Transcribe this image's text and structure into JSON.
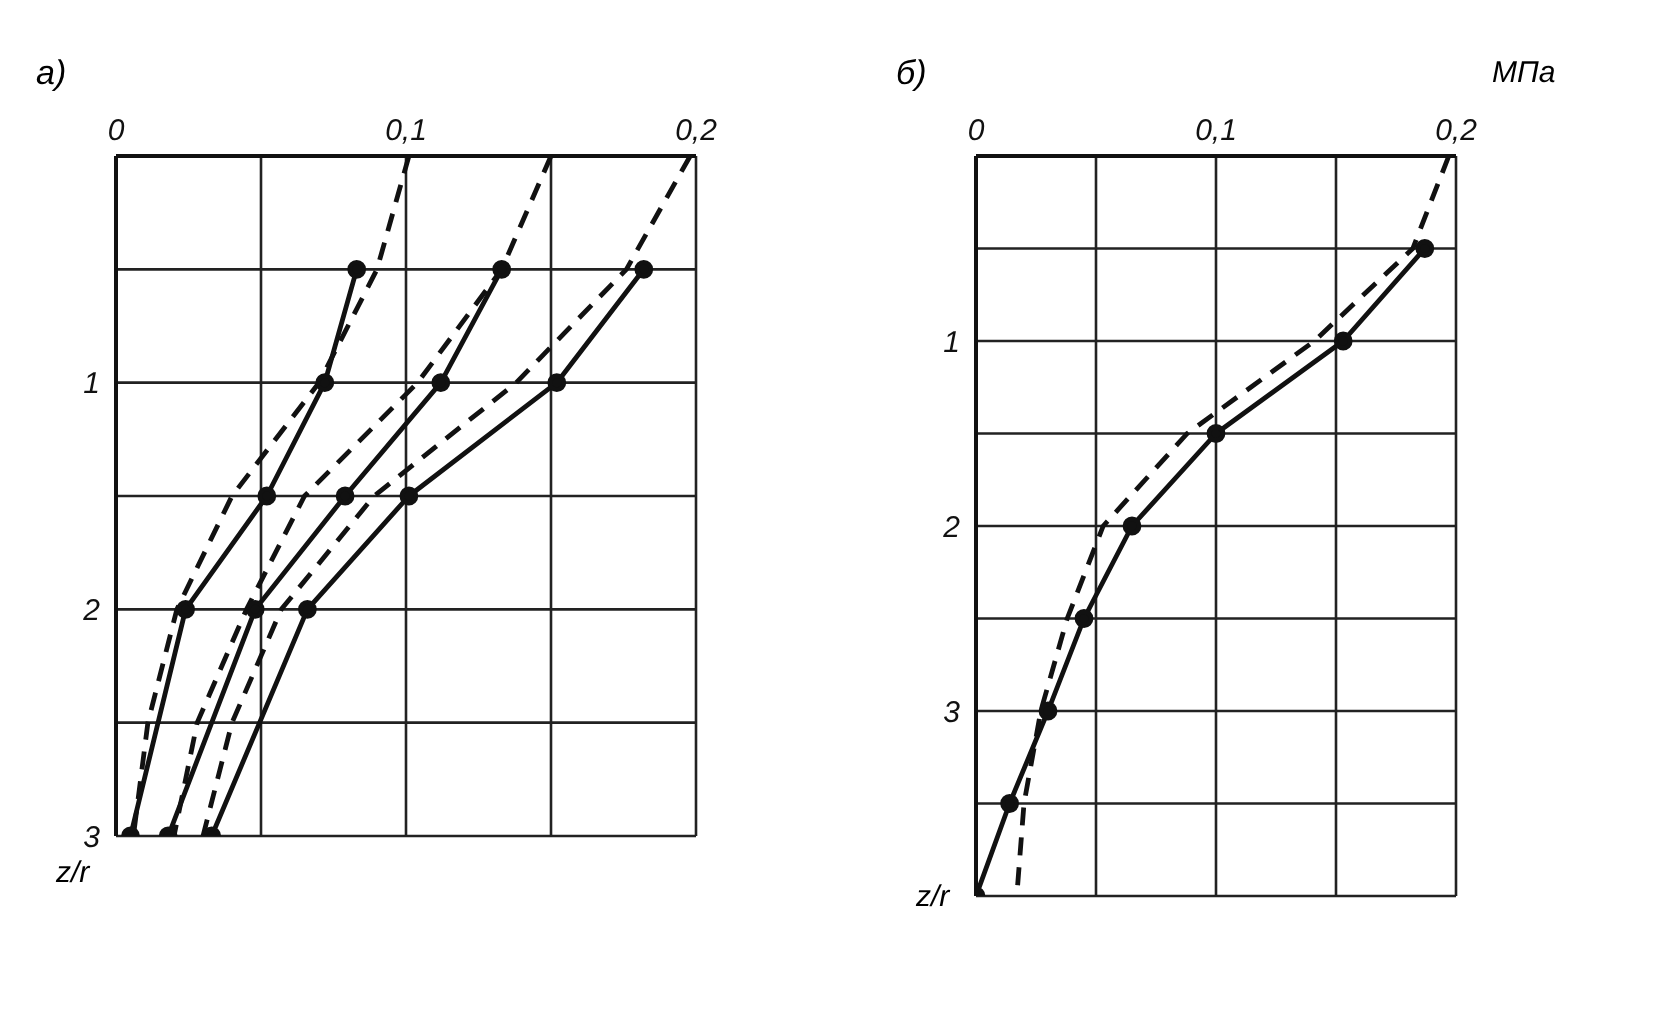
{
  "chart_data": [
    {
      "type": "line",
      "title": "а)",
      "ylabel": "z/r",
      "xlim": [
        0,
        0.2
      ],
      "xticks": [
        0,
        {
          "value": 0.05,
          "label": null
        },
        {
          "value": 0.1,
          "label": "0,1"
        },
        {
          "value": 0.15,
          "label": null
        },
        {
          "value": 0.2,
          "label": "0,2"
        }
      ],
      "ylim": [
        3,
        0
      ],
      "yticks": [
        {
          "value": 0,
          "label": null
        },
        {
          "value": 0.5,
          "label": null
        },
        1,
        {
          "value": 1.5,
          "label": null
        },
        2,
        {
          "value": 2.5,
          "label": null
        },
        3
      ],
      "grid": true,
      "series": [
        {
          "color": "#111111",
          "marker": "circle",
          "line_style": "solid",
          "x": [
            0.083,
            0.072,
            0.052,
            0.024,
            0.005
          ],
          "values": [
            0.5,
            1,
            1.5,
            2,
            3
          ]
        },
        {
          "color": "#111111",
          "marker": "circle",
          "line_style": "solid",
          "x": [
            0.133,
            0.112,
            0.079,
            0.048,
            0.018
          ],
          "values": [
            0.5,
            1,
            1.5,
            2,
            3
          ]
        },
        {
          "color": "#111111",
          "marker": "circle",
          "line_style": "solid",
          "x": [
            0.182,
            0.152,
            0.101,
            0.066,
            0.033
          ],
          "values": [
            0.5,
            1,
            1.5,
            2,
            3
          ]
        },
        {
          "color": "#111111",
          "marker": "none",
          "line_style": "dashed",
          "x": [
            0.101,
            0.09,
            0.07,
            0.04,
            0.021,
            0.011,
            0.006
          ],
          "values": [
            0,
            0.5,
            1,
            1.5,
            2,
            2.5,
            3
          ]
        },
        {
          "color": "#111111",
          "marker": "none",
          "line_style": "dashed",
          "x": [
            0.15,
            0.133,
            0.104,
            0.065,
            0.045,
            0.028,
            0.02
          ],
          "values": [
            0,
            0.5,
            1,
            1.5,
            2,
            2.5,
            3
          ]
        },
        {
          "color": "#111111",
          "marker": "none",
          "line_style": "dashed",
          "x": [
            0.198,
            0.176,
            0.138,
            0.089,
            0.057,
            0.04,
            0.03
          ],
          "values": [
            0,
            0.5,
            1,
            1.5,
            2,
            2.5,
            3
          ]
        }
      ]
    },
    {
      "type": "line",
      "title": "б)",
      "xlabel": "МПа",
      "ylabel": "z/r",
      "xlim": [
        0,
        0.2
      ],
      "xticks": [
        0,
        {
          "value": 0.05,
          "label": null
        },
        {
          "value": 0.1,
          "label": "0,1"
        },
        {
          "value": 0.15,
          "label": null
        },
        {
          "value": 0.2,
          "label": "0,2"
        }
      ],
      "ylim": [
        4,
        0
      ],
      "yticks": [
        {
          "value": 0,
          "label": null
        },
        {
          "value": 0.5,
          "label": null
        },
        1,
        {
          "value": 1.5,
          "label": null
        },
        2,
        {
          "value": 2.5,
          "label": null
        },
        3,
        {
          "value": 3.5,
          "label": null
        },
        {
          "value": 4,
          "label": null
        }
      ],
      "grid": true,
      "series": [
        {
          "color": "#111111",
          "marker": "circle",
          "line_style": "solid",
          "x": [
            0.187,
            0.153,
            0.1,
            0.065,
            0.045,
            0.03,
            0.014,
            0
          ],
          "values": [
            0.5,
            1,
            1.5,
            2,
            2.5,
            3,
            3.5,
            4
          ]
        },
        {
          "color": "#111111",
          "marker": "none",
          "line_style": "dashed",
          "x": [
            0.197,
            0.182,
            0.141,
            0.088,
            0.053,
            0.038,
            0.027,
            0.02,
            0.017
          ],
          "values": [
            0,
            0.5,
            1,
            1.5,
            2,
            2.5,
            3,
            3.5,
            4
          ]
        }
      ]
    }
  ]
}
